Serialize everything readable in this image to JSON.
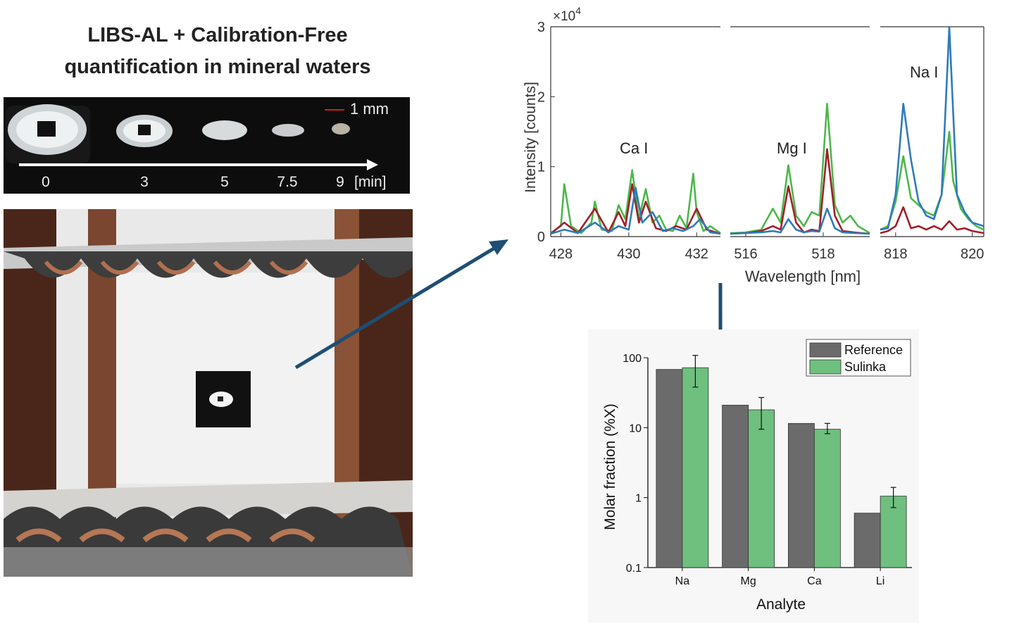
{
  "title": {
    "line1": "LIBS-AL + Calibration-Free",
    "line2": "quantification in mineral waters"
  },
  "drop_strip": {
    "scale_label": "1 mm",
    "times": [
      "0",
      "3",
      "5",
      "7.5",
      "9"
    ],
    "unit": "[min]"
  },
  "colors": {
    "green": "#4cb84a",
    "blue": "#2e7bbd",
    "darkred": "#a0202a",
    "arrow": "#1f4e73",
    "bar_reference": "#6b6b6b",
    "bar_sulinka": "#6fbf7f"
  },
  "chart_data": [
    {
      "type": "line",
      "ylabel": "Intensity [counts]",
      "xlabel": "Wavelength [nm]",
      "y_multiplier_label": "×10",
      "y_multiplier_exp": "4",
      "ylim": [
        0,
        3
      ],
      "yticks": [
        "0",
        "1",
        "2",
        "3"
      ],
      "panels": [
        {
          "xlim": [
            427.7,
            432.7
          ],
          "xticks": [
            "428",
            "430",
            "432"
          ],
          "annotation": "Ca I",
          "series": [
            {
              "color": "green",
              "x": [
                427.7,
                428.0,
                428.1,
                428.3,
                428.6,
                428.9,
                429.0,
                429.2,
                429.5,
                429.7,
                429.9,
                430.1,
                430.3,
                430.5,
                430.7,
                430.9,
                431.1,
                431.3,
                431.5,
                431.7,
                431.9,
                432.0,
                432.2,
                432.4,
                432.7
              ],
              "y": [
                0.05,
                0.15,
                0.75,
                0.15,
                0.05,
                0.2,
                0.5,
                0.1,
                0.08,
                0.45,
                0.25,
                0.95,
                0.25,
                0.68,
                0.2,
                0.3,
                0.1,
                0.08,
                0.3,
                0.12,
                0.9,
                0.35,
                0.08,
                0.15,
                0.05
              ]
            },
            {
              "color": "darkred",
              "x": [
                427.7,
                428.1,
                428.5,
                429.0,
                429.4,
                429.7,
                429.9,
                430.1,
                430.3,
                430.5,
                430.8,
                431.1,
                431.4,
                431.7,
                432.0,
                432.3,
                432.7
              ],
              "y": [
                0.04,
                0.2,
                0.05,
                0.4,
                0.06,
                0.35,
                0.15,
                0.75,
                0.2,
                0.5,
                0.12,
                0.08,
                0.15,
                0.1,
                0.4,
                0.1,
                0.04
              ]
            },
            {
              "color": "blue",
              "x": [
                427.7,
                428.1,
                428.5,
                429.0,
                429.4,
                429.7,
                430.0,
                430.2,
                430.4,
                430.7,
                431.0,
                431.3,
                431.6,
                431.9,
                432.1,
                432.4,
                432.7
              ],
              "y": [
                0.04,
                0.1,
                0.05,
                0.2,
                0.06,
                0.15,
                0.1,
                0.7,
                0.2,
                0.35,
                0.08,
                0.12,
                0.08,
                0.15,
                0.25,
                0.06,
                0.04
              ]
            }
          ]
        },
        {
          "xlim": [
            515.6,
            519.2
          ],
          "xticks": [
            "516",
            "518"
          ],
          "annotation": "Mg I",
          "series": [
            {
              "color": "green",
              "x": [
                515.6,
                516.0,
                516.4,
                516.7,
                516.9,
                517.1,
                517.3,
                517.5,
                517.7,
                517.9,
                518.1,
                518.3,
                518.5,
                518.7,
                518.9,
                519.2
              ],
              "y": [
                0.05,
                0.06,
                0.1,
                0.4,
                0.2,
                1.02,
                0.3,
                0.15,
                0.35,
                0.3,
                1.9,
                0.45,
                0.2,
                0.3,
                0.15,
                0.05
              ]
            },
            {
              "color": "darkred",
              "x": [
                515.6,
                516.0,
                516.4,
                516.7,
                516.9,
                517.1,
                517.3,
                517.5,
                517.7,
                517.9,
                518.1,
                518.3,
                518.5,
                518.8,
                519.2
              ],
              "y": [
                0.04,
                0.05,
                0.08,
                0.15,
                0.1,
                0.72,
                0.2,
                0.06,
                0.1,
                0.08,
                1.25,
                0.3,
                0.08,
                0.06,
                0.04
              ]
            },
            {
              "color": "blue",
              "x": [
                515.6,
                516.0,
                516.4,
                516.7,
                516.9,
                517.1,
                517.3,
                517.5,
                517.7,
                517.9,
                518.1,
                518.3,
                518.5,
                518.8,
                519.2
              ],
              "y": [
                0.04,
                0.05,
                0.06,
                0.08,
                0.06,
                0.25,
                0.1,
                0.06,
                0.08,
                0.07,
                0.4,
                0.12,
                0.06,
                0.05,
                0.04
              ]
            }
          ]
        },
        {
          "xlim": [
            817.6,
            820.3
          ],
          "xticks": [
            "818",
            "820"
          ],
          "annotation": "Na I",
          "series": [
            {
              "color": "green",
              "x": [
                817.6,
                817.8,
                818.0,
                818.2,
                818.4,
                818.6,
                818.8,
                819.0,
                819.2,
                819.4,
                819.5,
                819.7,
                819.9,
                820.1,
                820.3
              ],
              "y": [
                0.1,
                0.15,
                0.5,
                1.15,
                0.55,
                0.45,
                0.35,
                0.3,
                0.6,
                1.5,
                0.8,
                0.4,
                0.25,
                0.15,
                0.1
              ]
            },
            {
              "color": "darkred",
              "x": [
                817.6,
                817.8,
                818.0,
                818.2,
                818.4,
                818.6,
                818.8,
                819.0,
                819.2,
                819.4,
                819.6,
                819.8,
                820.0,
                820.3
              ],
              "y": [
                0.05,
                0.08,
                0.15,
                0.42,
                0.12,
                0.15,
                0.1,
                0.15,
                0.1,
                0.22,
                0.1,
                0.12,
                0.08,
                0.05
              ]
            },
            {
              "color": "blue",
              "x": [
                817.6,
                817.8,
                818.0,
                818.2,
                818.4,
                818.6,
                818.8,
                819.0,
                819.2,
                819.4,
                819.5,
                819.6,
                819.8,
                820.0,
                820.3
              ],
              "y": [
                0.1,
                0.12,
                0.6,
                1.9,
                1.1,
                0.5,
                0.3,
                0.25,
                0.6,
                3.0,
                1.8,
                0.6,
                0.35,
                0.2,
                0.15
              ]
            }
          ]
        }
      ]
    },
    {
      "type": "bar",
      "xlabel": "Analyte",
      "ylabel": "Molar fraction (%X)",
      "yscale": "log",
      "ylim": [
        0.1,
        100
      ],
      "yticks": [
        "0.1",
        "1",
        "10",
        "100"
      ],
      "categories": [
        "Na",
        "Mg",
        "Ca",
        "Li"
      ],
      "legend_position": "top-right",
      "series": [
        {
          "name": "Reference",
          "color": "bar_reference",
          "values": [
            68,
            21,
            11.5,
            0.6
          ]
        },
        {
          "name": "Sulinka",
          "color": "bar_sulinka",
          "values": [
            72,
            18,
            9.5,
            1.05
          ],
          "err_low": [
            38,
            9.5,
            8.2,
            0.72
          ],
          "err_high": [
            108,
            27,
            11.5,
            1.4
          ]
        }
      ]
    }
  ]
}
